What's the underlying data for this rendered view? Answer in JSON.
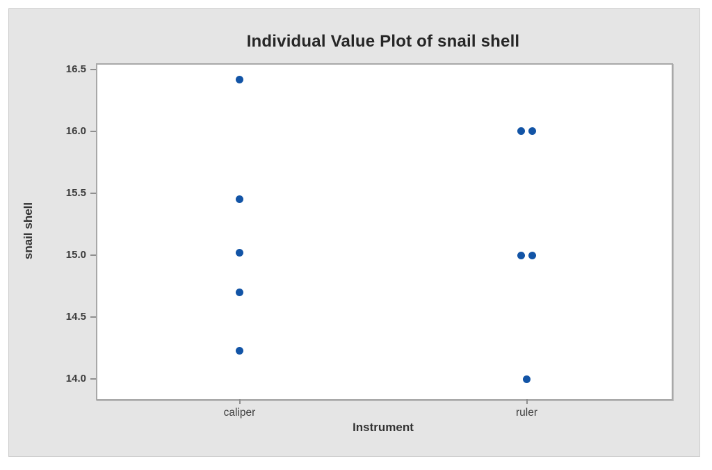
{
  "chart_data": {
    "type": "scatter",
    "variant": "individual_value_plot",
    "title": "Individual Value Plot of snail shell",
    "xlabel": "Instrument",
    "ylabel": "snail shell",
    "categories": [
      "caliper",
      "ruler"
    ],
    "series": [
      {
        "name": "caliper",
        "values": [
          16.42,
          15.45,
          15.02,
          14.7,
          14.23
        ]
      },
      {
        "name": "ruler",
        "values": [
          16.0,
          16.0,
          15.0,
          15.0,
          14.0
        ]
      }
    ],
    "ytick_labels": [
      "16.5",
      "16.0",
      "15.5",
      "15.0",
      "14.5",
      "14.0"
    ],
    "ylim": [
      13.85,
      16.55
    ],
    "grid": false,
    "legend": null,
    "colors": {
      "point": "#1254a6",
      "panel_background": "#e5e5e5",
      "panel_border": "#cccccc",
      "plot_background": "#ffffff",
      "plot_border": "#a8a8a8",
      "tick_mark": "#8f8f8f",
      "tick_text": "#3d3d3d",
      "title_text": "#262626"
    }
  }
}
